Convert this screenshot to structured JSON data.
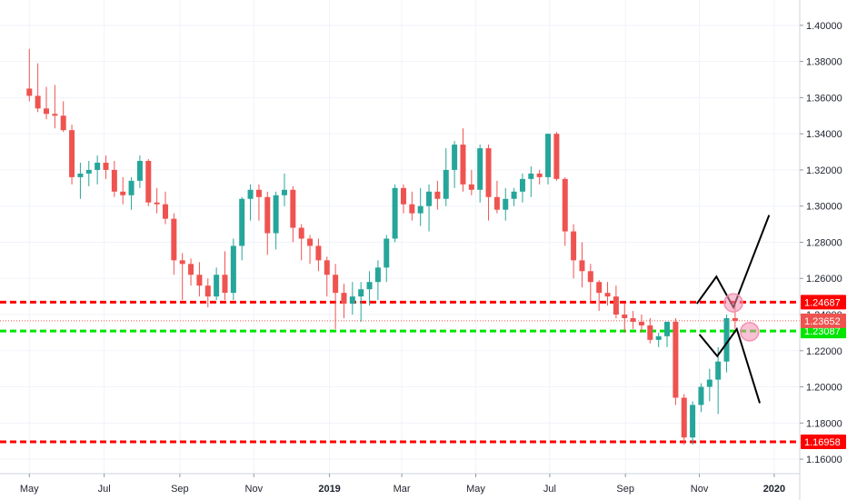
{
  "chart_data": {
    "type": "candlestick",
    "title": "",
    "y_ticks": [
      "1.40000",
      "1.38000",
      "1.36000",
      "1.34000",
      "1.32000",
      "1.30000",
      "1.28000",
      "1.26000",
      "1.24000",
      "1.22000",
      "1.20000",
      "1.18000",
      "1.16000"
    ],
    "x_ticks": [
      {
        "label": "May",
        "bold": false,
        "week": 0
      },
      {
        "label": "Jul",
        "bold": false,
        "week": 8.8
      },
      {
        "label": "Sep",
        "bold": false,
        "week": 17.7
      },
      {
        "label": "Nov",
        "bold": false,
        "week": 26.4
      },
      {
        "label": "2019",
        "bold": true,
        "week": 35.3
      },
      {
        "label": "Mar",
        "bold": false,
        "week": 43.8
      },
      {
        "label": "May",
        "bold": false,
        "week": 52.5
      },
      {
        "label": "Jul",
        "bold": false,
        "week": 61.2
      },
      {
        "label": "Sep",
        "bold": false,
        "week": 70.1
      },
      {
        "label": "Nov",
        "bold": false,
        "week": 78.8
      },
      {
        "label": "2020",
        "bold": true,
        "week": 87.6
      }
    ],
    "ylim": [
      1.152,
      1.414
    ],
    "x_range_weeks": [
      -3.45,
      90.6
    ],
    "grid": true,
    "colors": {
      "up": "#26a69a",
      "down": "#ef5350",
      "red_line": "#ff0000",
      "green_line": "#00e600",
      "projection": "#000000",
      "circle": "#f48fb1"
    },
    "horizontal_levels": [
      {
        "value": 1.24687,
        "label": "1.24687",
        "color": "#ff0000",
        "style": "dashed"
      },
      {
        "value": 1.23087,
        "label": "1.23087",
        "color": "#00e600",
        "style": "dashed"
      },
      {
        "value": 1.16958,
        "label": "1.16958",
        "color": "#ff0000",
        "style": "dashed"
      },
      {
        "value": 1.23652,
        "label": "1.23652",
        "color": "#ef5350",
        "style": "dotted"
      }
    ],
    "candles": [
      [
        1.365,
        1.387,
        1.358,
        1.361
      ],
      [
        1.361,
        1.379,
        1.352,
        1.354
      ],
      [
        1.354,
        1.366,
        1.348,
        1.351
      ],
      [
        1.351,
        1.367,
        1.343,
        1.35
      ],
      [
        1.35,
        1.358,
        1.341,
        1.342
      ],
      [
        1.342,
        1.345,
        1.312,
        1.316
      ],
      [
        1.316,
        1.324,
        1.304,
        1.318
      ],
      [
        1.318,
        1.325,
        1.311,
        1.32
      ],
      [
        1.32,
        1.328,
        1.312,
        1.324
      ],
      [
        1.324,
        1.328,
        1.315,
        1.32
      ],
      [
        1.32,
        1.325,
        1.305,
        1.308
      ],
      [
        1.308,
        1.316,
        1.301,
        1.306
      ],
      [
        1.306,
        1.316,
        1.298,
        1.314
      ],
      [
        1.314,
        1.328,
        1.31,
        1.325
      ],
      [
        1.325,
        1.326,
        1.3,
        1.302
      ],
      [
        1.302,
        1.31,
        1.296,
        1.301
      ],
      [
        1.301,
        1.308,
        1.29,
        1.293
      ],
      [
        1.293,
        1.296,
        1.262,
        1.27
      ],
      [
        1.27,
        1.274,
        1.248,
        1.268
      ],
      [
        1.268,
        1.271,
        1.256,
        1.262
      ],
      [
        1.262,
        1.269,
        1.25,
        1.256
      ],
      [
        1.256,
        1.26,
        1.244,
        1.25
      ],
      [
        1.25,
        1.266,
        1.248,
        1.262
      ],
      [
        1.262,
        1.275,
        1.248,
        1.252
      ],
      [
        1.252,
        1.282,
        1.248,
        1.278
      ],
      [
        1.278,
        1.305,
        1.27,
        1.304
      ],
      [
        1.304,
        1.312,
        1.292,
        1.309
      ],
      [
        1.309,
        1.312,
        1.292,
        1.305
      ],
      [
        1.305,
        1.308,
        1.273,
        1.285
      ],
      [
        1.285,
        1.308,
        1.276,
        1.306
      ],
      [
        1.306,
        1.318,
        1.3,
        1.309
      ],
      [
        1.309,
        1.311,
        1.28,
        1.288
      ],
      [
        1.288,
        1.29,
        1.27,
        1.282
      ],
      [
        1.282,
        1.284,
        1.268,
        1.278
      ],
      [
        1.278,
        1.282,
        1.264,
        1.27
      ],
      [
        1.27,
        1.272,
        1.25,
        1.262
      ],
      [
        1.262,
        1.268,
        1.232,
        1.252
      ],
      [
        1.252,
        1.257,
        1.238,
        1.246
      ],
      [
        1.246,
        1.258,
        1.24,
        1.25
      ],
      [
        1.25,
        1.258,
        1.236,
        1.254
      ],
      [
        1.254,
        1.264,
        1.245,
        1.258
      ],
      [
        1.258,
        1.27,
        1.248,
        1.266
      ],
      [
        1.266,
        1.284,
        1.258,
        1.282
      ],
      [
        1.282,
        1.312,
        1.28,
        1.31
      ],
      [
        1.31,
        1.312,
        1.296,
        1.301
      ],
      [
        1.301,
        1.308,
        1.292,
        1.296
      ],
      [
        1.296,
        1.31,
        1.289,
        1.3
      ],
      [
        1.3,
        1.312,
        1.286,
        1.308
      ],
      [
        1.308,
        1.314,
        1.298,
        1.304
      ],
      [
        1.304,
        1.332,
        1.3,
        1.32
      ],
      [
        1.32,
        1.336,
        1.31,
        1.334
      ],
      [
        1.334,
        1.343,
        1.308,
        1.312
      ],
      [
        1.312,
        1.32,
        1.306,
        1.309
      ],
      [
        1.309,
        1.334,
        1.302,
        1.332
      ],
      [
        1.332,
        1.334,
        1.292,
        1.305
      ],
      [
        1.305,
        1.314,
        1.296,
        1.298
      ],
      [
        1.298,
        1.31,
        1.292,
        1.304
      ],
      [
        1.304,
        1.31,
        1.3,
        1.308
      ],
      [
        1.308,
        1.318,
        1.302,
        1.315
      ],
      [
        1.315,
        1.322,
        1.305,
        1.318
      ],
      [
        1.318,
        1.32,
        1.312,
        1.316
      ],
      [
        1.316,
        1.34,
        1.312,
        1.34
      ],
      [
        1.34,
        1.341,
        1.314,
        1.315
      ],
      [
        1.315,
        1.316,
        1.278,
        1.286
      ],
      [
        1.286,
        1.29,
        1.26,
        1.27
      ],
      [
        1.27,
        1.28,
        1.255,
        1.264
      ],
      [
        1.264,
        1.268,
        1.246,
        1.258
      ],
      [
        1.258,
        1.259,
        1.242,
        1.252
      ],
      [
        1.252,
        1.258,
        1.245,
        1.25
      ],
      [
        1.25,
        1.256,
        1.238,
        1.24
      ],
      [
        1.24,
        1.246,
        1.23,
        1.238
      ],
      [
        1.238,
        1.242,
        1.232,
        1.236
      ],
      [
        1.236,
        1.24,
        1.23,
        1.234
      ],
      [
        1.234,
        1.238,
        1.224,
        1.226
      ],
      [
        1.226,
        1.23,
        1.222,
        1.228
      ],
      [
        1.228,
        1.236,
        1.222,
        1.236
      ],
      [
        1.236,
        1.238,
        1.19,
        1.194
      ],
      [
        1.194,
        1.196,
        1.168,
        1.172
      ],
      [
        1.172,
        1.192,
        1.168,
        1.19
      ],
      [
        1.19,
        1.202,
        1.186,
        1.2
      ],
      [
        1.2,
        1.21,
        1.192,
        1.204
      ],
      [
        1.204,
        1.222,
        1.185,
        1.214
      ],
      [
        1.214,
        1.24,
        1.208,
        1.238
      ],
      [
        1.238,
        1.246,
        1.232,
        1.2365
      ]
    ],
    "projection_lines": [
      [
        [
          78.5,
          1.246
        ],
        [
          80.8,
          1.261
        ],
        [
          82.8,
          1.244
        ],
        [
          87.0,
          1.295
        ]
      ],
      [
        [
          78.8,
          1.229
        ],
        [
          80.9,
          1.217
        ],
        [
          83.2,
          1.232
        ],
        [
          85.9,
          1.191
        ]
      ]
    ],
    "circles": [
      {
        "week": 82.8,
        "value": 1.2465
      },
      {
        "week": 84.7,
        "value": 1.2305
      }
    ]
  }
}
